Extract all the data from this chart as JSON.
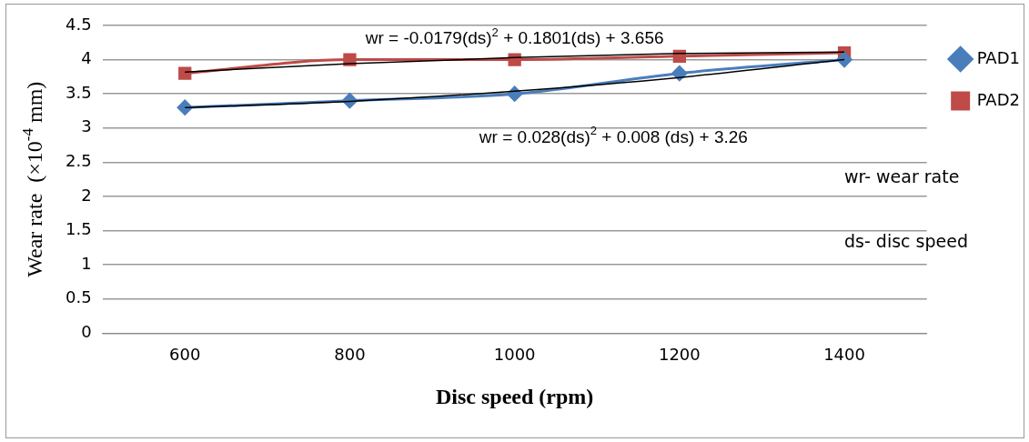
{
  "chart_data": {
    "type": "line",
    "xlabel": "Disc speed (rpm)",
    "ylabel": "Wear rate  (×10$^{-4}$ mm)",
    "categories": [
      "600",
      "800",
      "1000",
      "1200",
      "1400"
    ],
    "series": [
      {
        "name": "PAD1",
        "color": "#4a7ebb",
        "marker": "diamond",
        "values": [
          3.3,
          3.4,
          3.5,
          3.8,
          4.0
        ]
      },
      {
        "name": "PAD2",
        "color": "#be4b48",
        "marker": "square",
        "values": [
          3.8,
          4.0,
          4.0,
          4.05,
          4.1
        ]
      },
      {
        "type": "line",
        "color": "#000000",
        "marker": "none",
        "values": [
          3.82,
          3.94,
          4.03,
          4.09,
          4.11
        ]
      },
      {
        "type": "line",
        "color": "#000000",
        "marker": "none",
        "values": [
          3.3,
          3.39,
          3.54,
          3.74,
          4.0
        ]
      }
    ],
    "ylim": [
      0,
      4.5
    ],
    "yticks": [
      0,
      0.5,
      1,
      1.5,
      2,
      2.5,
      3,
      3.5,
      4,
      4.5
    ],
    "grid": "y",
    "legend": "right",
    "annotations": [
      "wr = -0.0179(ds)$^{2}$ + 0.1801(ds) + 3.656",
      "wr = 0.028(ds)$^{2}$ + 0.008 (ds) + 3.26",
      "wr- wear rate",
      "ds- disc speed"
    ]
  }
}
